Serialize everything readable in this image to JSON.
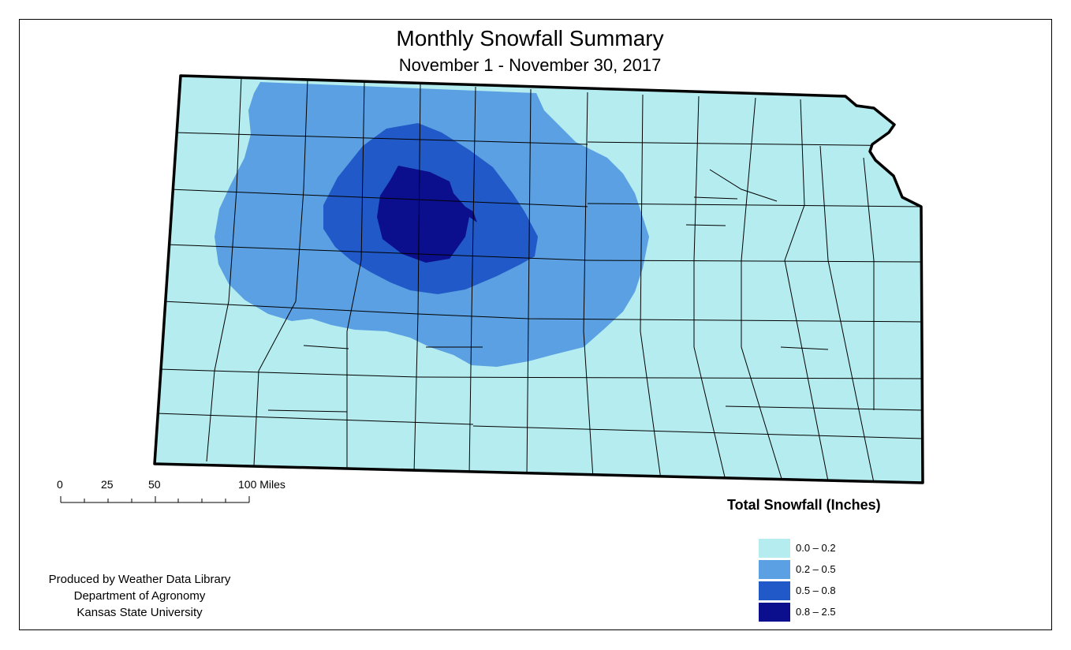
{
  "title": "Monthly Snowfall Summary",
  "subtitle": "November 1 - November 30, 2017",
  "scale_bar": {
    "labels": [
      "0",
      "25",
      "50",
      "100 Miles"
    ]
  },
  "legend": {
    "title": "Total Snowfall (Inches)",
    "items": [
      {
        "label": "0.0 – 0.2",
        "color": "#b5ecef"
      },
      {
        "label": "0.2 – 0.5",
        "color": "#5aa0e2"
      },
      {
        "label": "0.5 – 0.8",
        "color": "#2159c8"
      },
      {
        "label": "0.8 – 2.5",
        "color": "#0b0f8e"
      }
    ]
  },
  "credits": [
    "Produced by Weather Data Library",
    "Department of Agronomy",
    "Kansas State University"
  ],
  "colors": {
    "county_lines": "#000000",
    "state_border": "#000000"
  }
}
